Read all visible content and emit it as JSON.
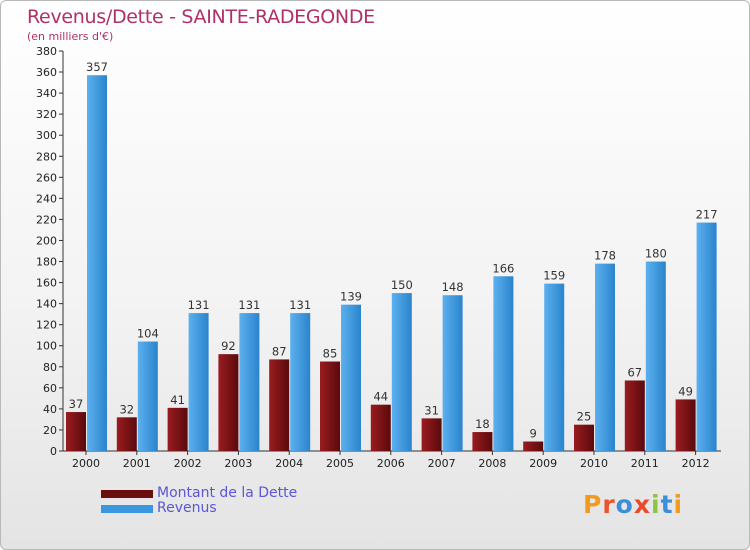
{
  "title": "Revenus/Dette - SAINTE-RADEGONDE",
  "subtitle": "(en milliers d'€)",
  "colors": {
    "dette": "#7a1418",
    "revenus": "#3a96de",
    "title": "#b0306a",
    "legend_text": "#5a56d6"
  },
  "legend": [
    {
      "label": "Montant de la Dette",
      "color": "#6a0e10"
    },
    {
      "label": "Revenus",
      "color": "#3a96de"
    }
  ],
  "logo": {
    "text": "Proxiti",
    "letter_colors": [
      "#f39a1e",
      "#e8552a",
      "#3a8fd8",
      "#e84a2a",
      "#8cc63f",
      "#3a8fd8",
      "#f39a1e"
    ]
  },
  "chart_data": {
    "type": "bar",
    "title": "Revenus/Dette - SAINTE-RADEGONDE",
    "subtitle": "(en milliers d'€)",
    "categories": [
      "2000",
      "2001",
      "2002",
      "2003",
      "2004",
      "2005",
      "2006",
      "2007",
      "2008",
      "2009",
      "2010",
      "2011",
      "2012"
    ],
    "series": [
      {
        "name": "Montant de la Dette",
        "values": [
          37,
          32,
          41,
          92,
          87,
          85,
          44,
          31,
          18,
          9,
          25,
          67,
          49
        ]
      },
      {
        "name": "Revenus",
        "values": [
          357,
          104,
          131,
          131,
          131,
          139,
          150,
          148,
          166,
          159,
          178,
          180,
          217
        ]
      }
    ],
    "ylim": [
      0,
      380
    ],
    "yticks": [
      0,
      20,
      40,
      60,
      80,
      100,
      120,
      140,
      160,
      180,
      200,
      220,
      240,
      260,
      280,
      300,
      320,
      340,
      360,
      380
    ],
    "grid": false,
    "legend_position": "bottom-left"
  }
}
